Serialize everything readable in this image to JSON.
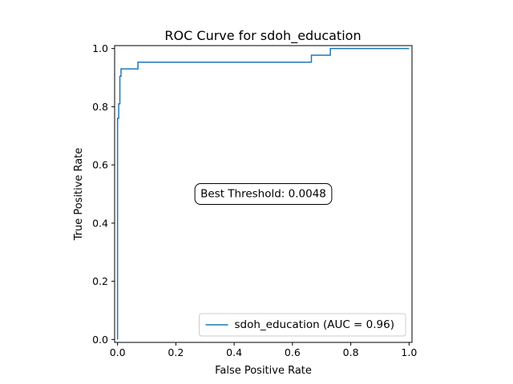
{
  "chart_data": {
    "type": "line",
    "title": "ROC Curve for sdoh_education",
    "xlabel": "False Positive Rate",
    "ylabel": "True Positive Rate",
    "xlim": [
      -0.01,
      1.01
    ],
    "ylim": [
      -0.01,
      1.01
    ],
    "xticks": [
      0.0,
      0.2,
      0.4,
      0.6,
      0.8,
      1.0
    ],
    "yticks": [
      0.0,
      0.2,
      0.4,
      0.6,
      0.8,
      1.0
    ],
    "xtick_labels": [
      "0.0",
      "0.2",
      "0.4",
      "0.6",
      "0.8",
      "1.0"
    ],
    "ytick_labels": [
      "0.0",
      "0.2",
      "0.4",
      "0.6",
      "0.8",
      "1.0"
    ],
    "grid": false,
    "legend_position": "lower-right",
    "series": [
      {
        "name": "sdoh_education (AUC = 0.96)",
        "color": "#1f77b4",
        "x": [
          0.0,
          0.0,
          0.0,
          0.004,
          0.004,
          0.008,
          0.008,
          0.012,
          0.012,
          0.07,
          0.07,
          0.665,
          0.665,
          0.73,
          0.73,
          1.0
        ],
        "y": [
          0.0,
          0.0,
          0.76,
          0.76,
          0.81,
          0.81,
          0.905,
          0.905,
          0.93,
          0.93,
          0.953,
          0.953,
          0.977,
          0.977,
          1.0,
          1.0
        ]
      }
    ],
    "annotation": {
      "text": "Best Threshold: 0.0048",
      "x": 0.5,
      "y": 0.5
    }
  }
}
